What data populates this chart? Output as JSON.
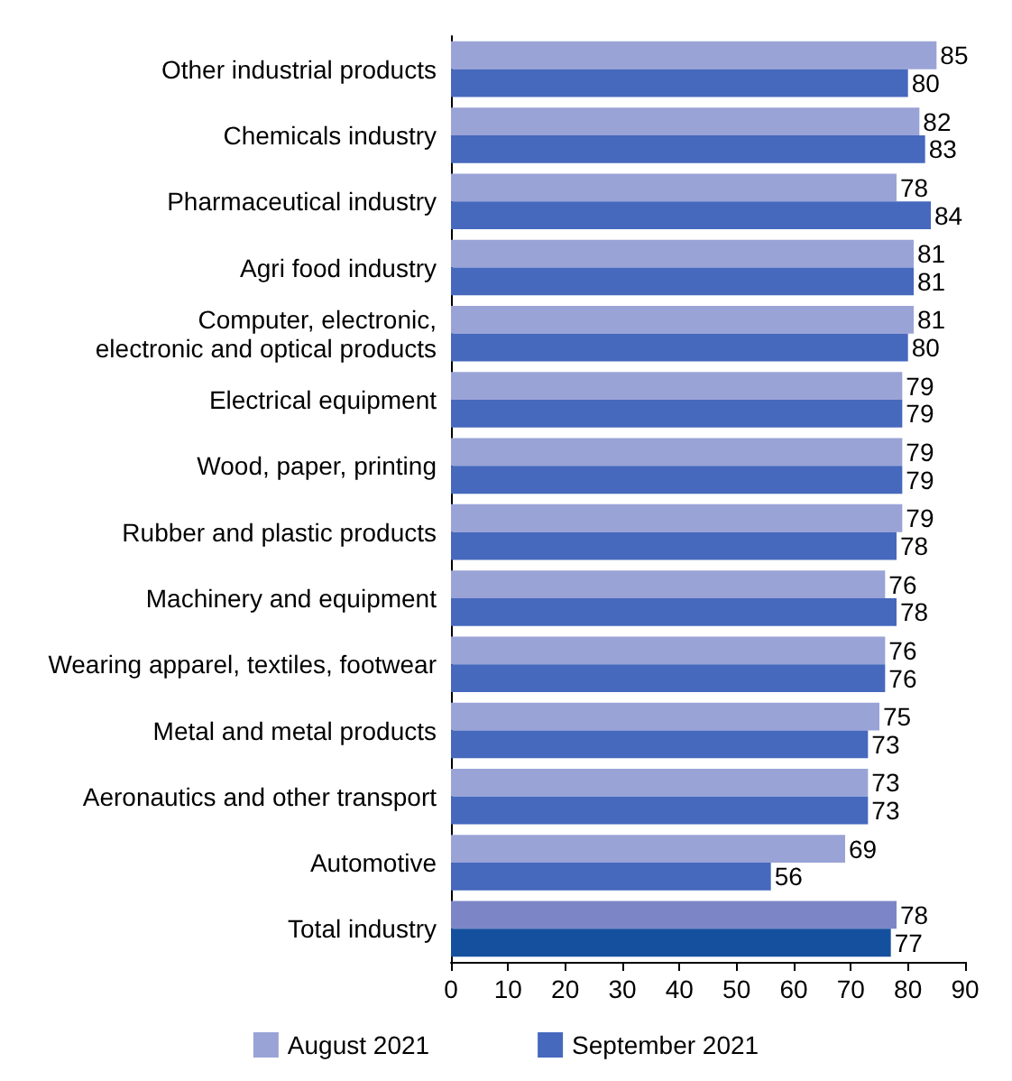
{
  "chart_data": {
    "type": "bar",
    "orientation": "horizontal",
    "categories": [
      "Other industrial products",
      "Chemicals industry",
      "Pharmaceutical industry",
      "Agri food industry",
      "Computer, electronic,\nelectronic and optical products",
      "Electrical equipment",
      "Wood, paper, printing",
      "Rubber and plastic products",
      "Machinery and equipment",
      "Wearing apparel, textiles, footwear",
      "Metal and metal products",
      "Aeronautics and other transport",
      "Automotive",
      "Total industry"
    ],
    "series": [
      {
        "name": "August 2021",
        "color": "#9aa3d6",
        "colors": [
          "#9aa3d6",
          "#9aa3d6",
          "#9aa3d6",
          "#9aa3d6",
          "#9aa3d6",
          "#9aa3d6",
          "#9aa3d6",
          "#9aa3d6",
          "#9aa3d6",
          "#9aa3d6",
          "#9aa3d6",
          "#9aa3d6",
          "#9aa3d6",
          "#7c86c6"
        ],
        "values": [
          85,
          82,
          78,
          81,
          81,
          79,
          79,
          79,
          76,
          76,
          75,
          73,
          69,
          78
        ]
      },
      {
        "name": "September 2021",
        "color": "#4668bd",
        "colors": [
          "#4668bd",
          "#4668bd",
          "#4668bd",
          "#4668bd",
          "#4668bd",
          "#4668bd",
          "#4668bd",
          "#4668bd",
          "#4668bd",
          "#4668bd",
          "#4668bd",
          "#4668bd",
          "#4668bd",
          "#14509e"
        ],
        "values": [
          80,
          83,
          84,
          81,
          80,
          79,
          79,
          78,
          78,
          76,
          73,
          73,
          56,
          77
        ]
      }
    ],
    "xlim": [
      0,
      90
    ],
    "xticks": [
      0,
      10,
      20,
      30,
      40,
      50,
      60,
      70,
      80,
      90
    ],
    "grid": false,
    "legend": "bottom",
    "data_labels": true
  }
}
